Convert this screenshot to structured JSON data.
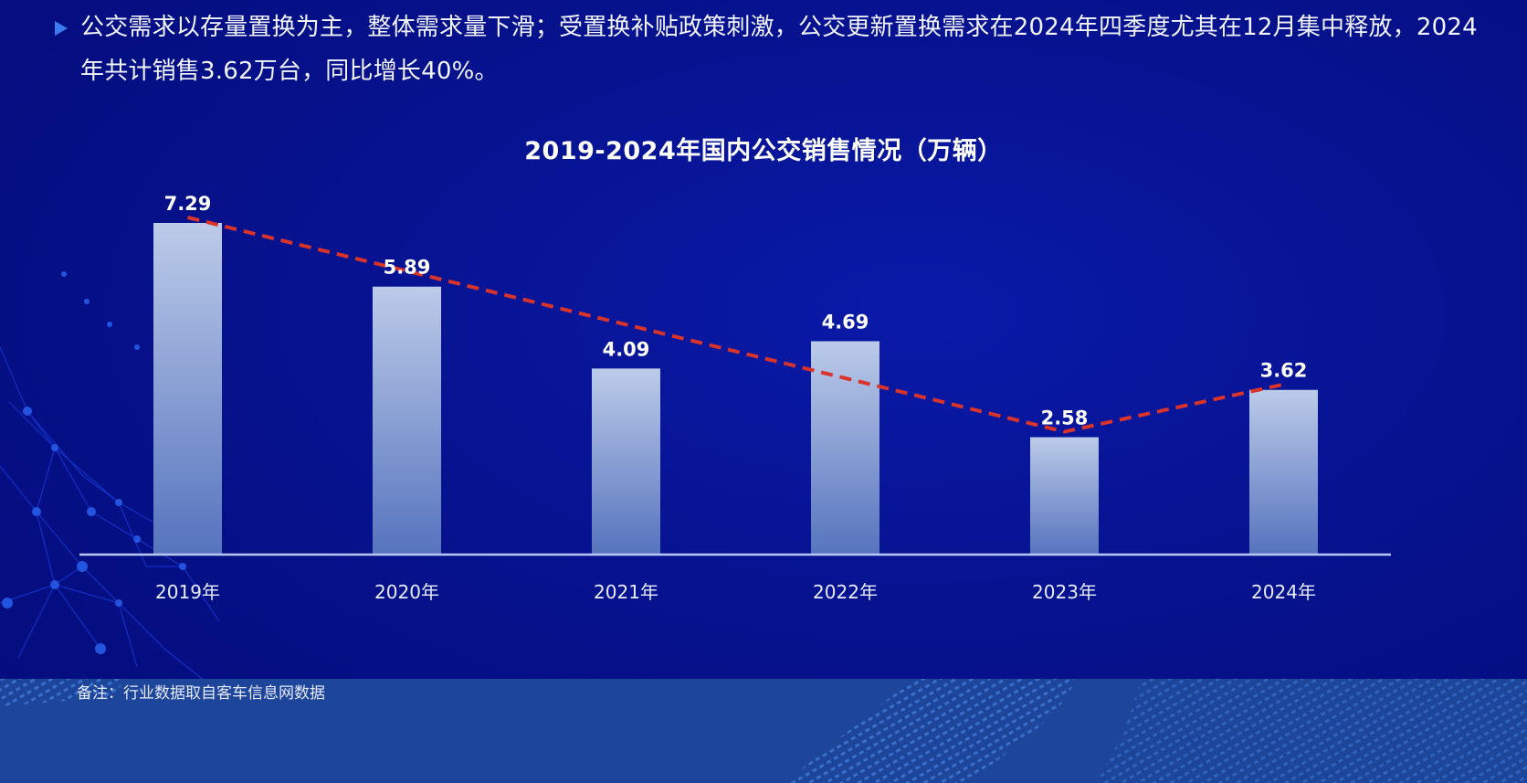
{
  "header": {
    "bullet_icon": "triangle-bullet-icon",
    "text": "公交需求以存量置换为主，整体需求量下滑；受置换补贴政策刺激，公交更新置换需求在2024年四季度尤其在12月集中释放，2024年共计销售3.62万台，同比增长40%。"
  },
  "note": "备注：行业数据取自客车信息网数据",
  "colors": {
    "background": "#06128f",
    "bar_top": "#b8c8e8",
    "bar_bottom": "#5a78c0",
    "trend_line": "#d9342b",
    "axis": "#b9c6f0",
    "bottom_band": "#1d4599"
  },
  "chart_data": {
    "type": "bar",
    "title": "2019-2024年国内公交销售情况（万辆）",
    "categories": [
      "2019年",
      "2020年",
      "2021年",
      "2022年",
      "2023年",
      "2024年"
    ],
    "values": [
      7.29,
      5.89,
      4.09,
      4.69,
      2.58,
      3.62
    ],
    "data_labels": [
      "7.29",
      "5.89",
      "4.09",
      "4.69",
      "2.58",
      "3.62"
    ],
    "xlabel": "",
    "ylabel": "",
    "unit": "万辆",
    "ylim": [
      0,
      8
    ],
    "grid": false,
    "legend": null,
    "annotations": [
      {
        "type": "dashed-trend-line",
        "color": "#d9342b",
        "points": [
          [
            "2019年",
            7.29
          ],
          [
            "2023年",
            2.58
          ],
          [
            "2024年",
            3.62
          ]
        ]
      }
    ]
  }
}
